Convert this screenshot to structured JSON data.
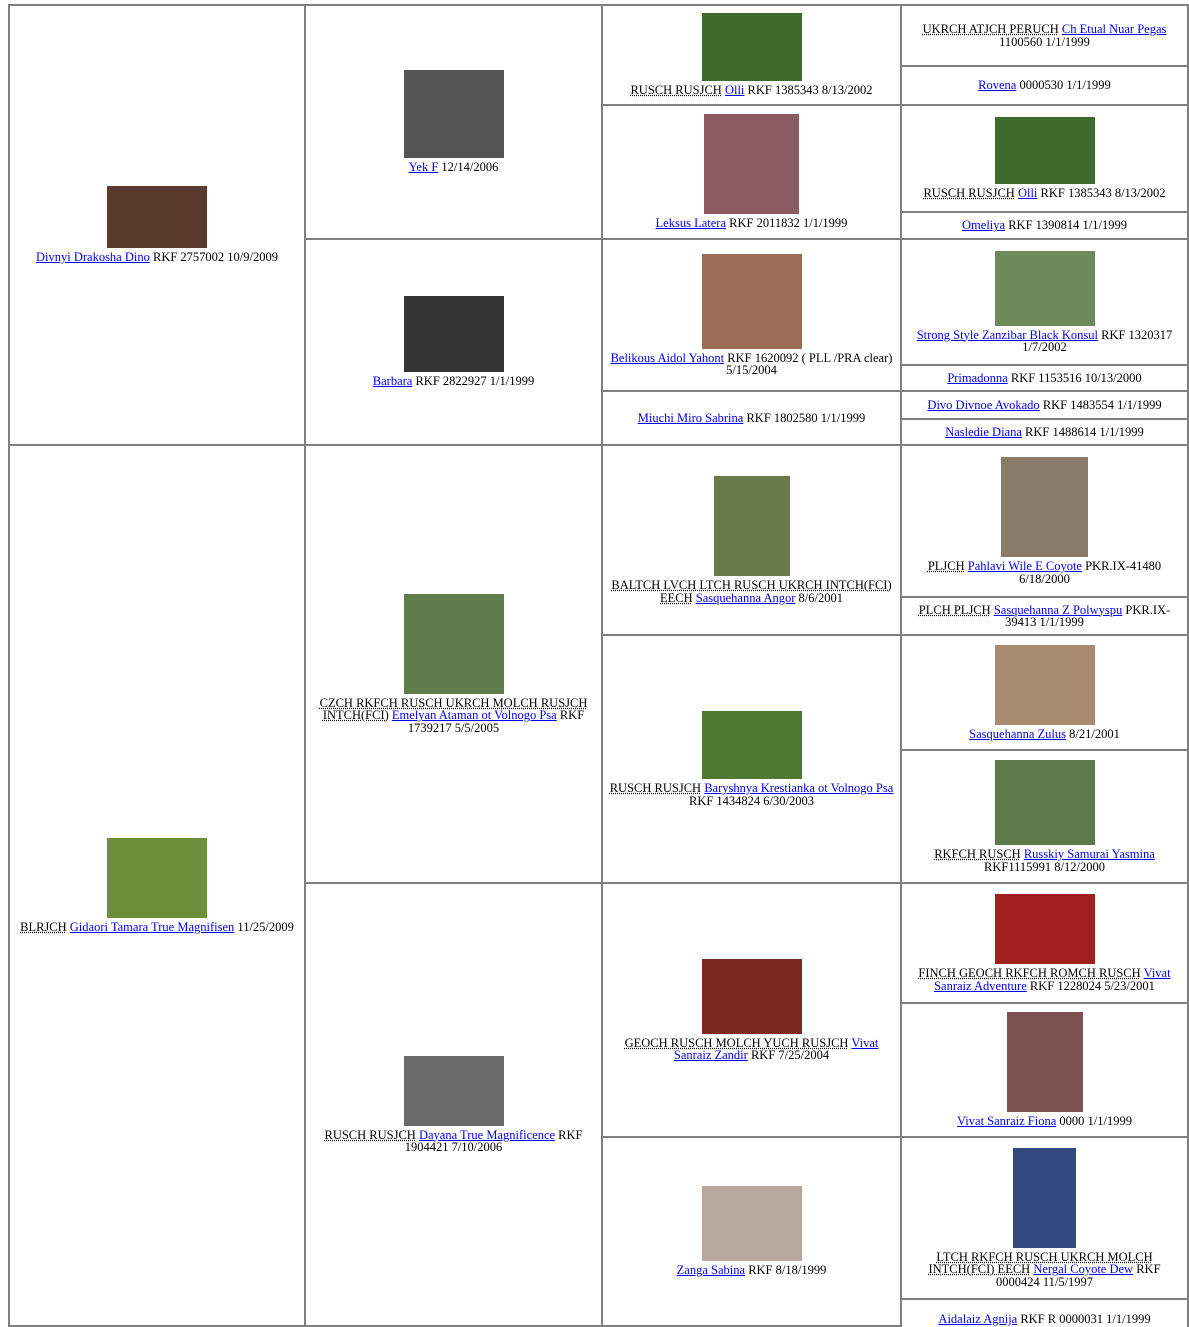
{
  "pedigree": {
    "generations": [
      [
        {
          "name": "Divnyi Drakosha Dino",
          "details": "RKF 2757002 10/9/2009"
        },
        {
          "titles": "BLRJCH",
          "name": "Gidaori Tamara True Magnifisen",
          "details": "11/25/2009"
        }
      ],
      [
        {
          "name": "Yek F",
          "details": "12/14/2006"
        },
        {
          "name": "Barbara",
          "details": "RKF 2822927 1/1/1999"
        },
        {
          "titles": "CZCH RKFCH RUSCH UKRCH MOLCH RUSJCH INTCH(FCI)",
          "name": "Emelyan Ataman ot Volnogo Psa",
          "details": "RKF 1739217 5/5/2005"
        },
        {
          "titles": "RUSCH RUSJCH",
          "name": "Dayana True Magnificence",
          "details": "RKF 1904421 7/10/2006"
        }
      ],
      [
        {
          "titles": "RUSCH RUSJCH",
          "name": "Olli",
          "details": "RKF 1385343 8/13/2002"
        },
        {
          "name": "Leksus Latera",
          "details": "RKF 2011832 1/1/1999"
        },
        {
          "name": "Belikous Aidol Yahont",
          "details": "RKF 1620092 ( PLL /PRA clear) 5/15/2004"
        },
        {
          "name": "Miuchi Miro Sabrina",
          "details": "RKF 1802580 1/1/1999"
        },
        {
          "titles": "BALTCH LVCH LTCH RUSCH UKRCH INTCH(FCI) EECH",
          "name": "Sasquehanna Angor",
          "details": "8/6/2001"
        },
        {
          "titles": "RUSCH RUSJCH",
          "name": "Baryshnya Krestianka ot Volnogo Psa",
          "details": "RKF 1434824 6/30/2003"
        },
        {
          "titles": "GEOCH RUSCH MOLCH YUCH RUSJCH",
          "name": "Vivat Sanraiz Zandir",
          "details": "RKF 7/25/2004"
        },
        {
          "name": "Zanga Sabina",
          "details": "RKF 8/18/1999"
        }
      ],
      [
        {
          "titles": "UKRCH ATJCH PERUCH",
          "name": "Ch Etual Nuar Pegas",
          "details": "1100560 1/1/1999"
        },
        {
          "name": "Rovena",
          "details": "0000530 1/1/1999"
        },
        {
          "titles": "RUSCH RUSJCH",
          "name": "Olli",
          "details": "RKF 1385343 8/13/2002"
        },
        {
          "name": "Omeliya",
          "details": "RKF 1390814 1/1/1999"
        },
        {
          "name": "Strong Style Zanzibar Black Konsul",
          "details": "RKF 1320317 1/7/2002"
        },
        {
          "name": "Primadonna",
          "details": "RKF 1153516 10/13/2000"
        },
        {
          "name": "Divo Divnoe Avokado",
          "details": "RKF 1483554 1/1/1999"
        },
        {
          "name": "Nasledie Diana",
          "details": "RKF 1488614 1/1/1999"
        },
        {
          "titles": "PLJCH",
          "name": "Pahlavi Wile E Coyote",
          "details": "PKR.IX-41480 6/18/2000"
        },
        {
          "titles": "PLCH PLJCH",
          "name": "Sasquehanna Z Polwyspu",
          "details": "PKR.IX-39413 1/1/1999"
        },
        {
          "name": "Sasquehanna Zulus",
          "details": "8/21/2001"
        },
        {
          "titles": "RKFCH RUSCH",
          "name": "Russkiy Samurai Yasmina",
          "details": "RKF1115991 8/12/2000"
        },
        {
          "titles": "FINCH GEOCH RKFCH ROMCH RUSCH",
          "name": "Vivat Sanraiz Adventure",
          "details": "RKF 1228024 5/23/2001"
        },
        {
          "name": "Vivat Sanraiz Fiona",
          "details": "0000 1/1/1999"
        },
        {
          "titles": "LTCH RKFCH RUSCH UKRCH MOLCH INTCH(FCI) EECH",
          "name": "Nergal Coyote Dew",
          "details": "RKF 0000424 11/5/1997"
        },
        {
          "name": "Aidalaiz Agnija",
          "details": "RKF R 0000031 1/1/1999"
        }
      ]
    ]
  }
}
